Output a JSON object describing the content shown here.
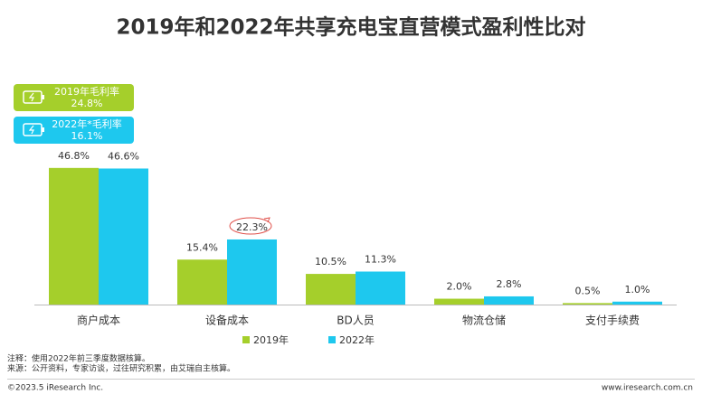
{
  "chart_data": {
    "type": "bar",
    "title": "2019年和2022年共享充电宝直营模式盈利性比对",
    "categories": [
      "商户成本",
      "设备成本",
      "BD人员",
      "物流仓储",
      "支付手续费"
    ],
    "series": [
      {
        "name": "2019年",
        "color": "#a5cf2b",
        "values": [
          46.8,
          15.4,
          10.5,
          2.0,
          0.5
        ],
        "value_labels": [
          "46.8%",
          "15.4%",
          "10.5%",
          "2.0%",
          "0.5%"
        ]
      },
      {
        "name": "2022年",
        "color": "#1ec8ee",
        "values": [
          46.6,
          22.3,
          11.3,
          2.8,
          1.0
        ],
        "value_labels": [
          "46.6%",
          "22.3%",
          "11.3%",
          "2.8%",
          "1.0%"
        ]
      }
    ],
    "badges": [
      {
        "title": "2019年毛利率",
        "rate": "24.8%"
      },
      {
        "title": "2022年*毛利率",
        "rate": "16.1%"
      }
    ],
    "notes": [
      "注释：使用2022年前三季度数据核算。",
      "来源：公开资料，专家访谈，过往研究积累，由艾瑞自主核算。"
    ],
    "copyright": "©2023.5 iResearch Inc.",
    "website": "www.iresearch.com.cn"
  }
}
